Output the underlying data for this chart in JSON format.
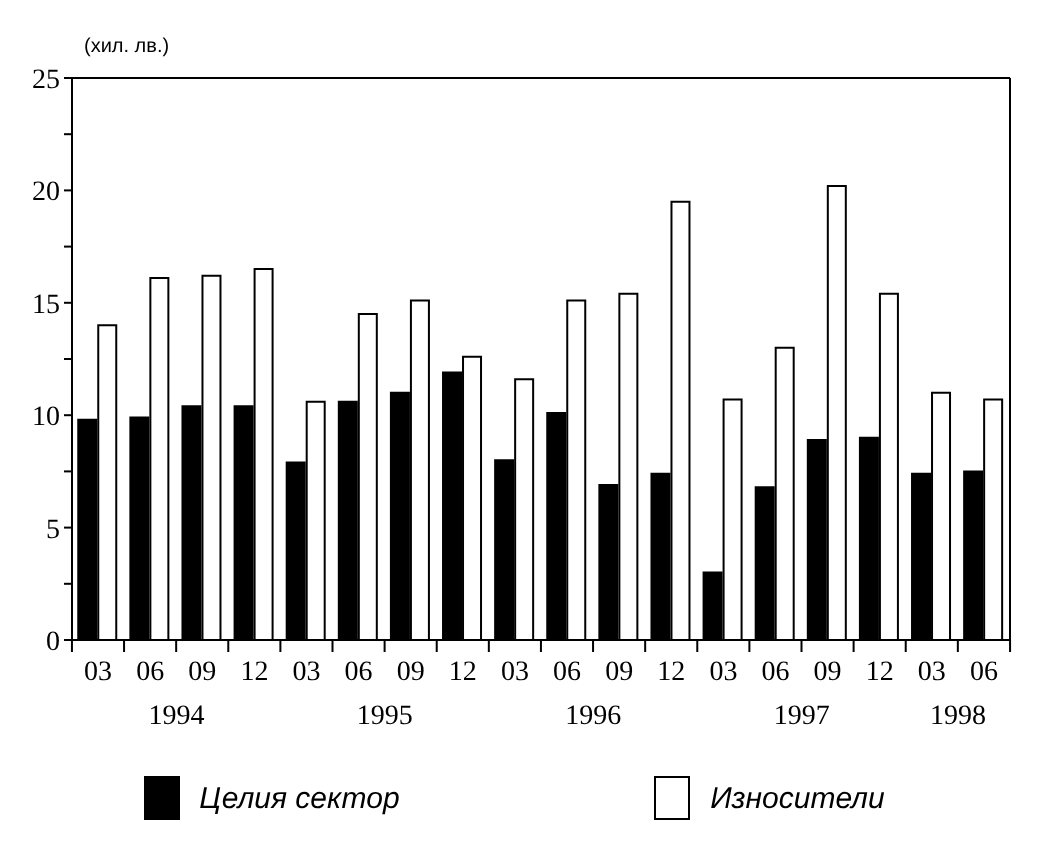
{
  "chart_data": {
    "type": "bar",
    "ylabel": "(хил. лв.)",
    "categories": [
      "03",
      "06",
      "09",
      "12",
      "03",
      "06",
      "09",
      "12",
      "03",
      "06",
      "09",
      "12",
      "03",
      "06",
      "09",
      "12",
      "03",
      "06"
    ],
    "series": [
      {
        "name": "Целия сектор",
        "color": "#000000",
        "values": [
          9.8,
          9.9,
          10.4,
          10.4,
          7.9,
          10.6,
          11.0,
          11.9,
          8.0,
          10.1,
          6.9,
          7.4,
          3.0,
          6.8,
          8.9,
          9.0,
          7.4,
          7.5
        ]
      },
      {
        "name": "Износители",
        "color": "#ffffff",
        "values": [
          14.0,
          16.1,
          16.2,
          16.5,
          10.6,
          14.5,
          15.1,
          12.6,
          11.6,
          15.1,
          15.4,
          19.5,
          10.7,
          13.0,
          20.2,
          15.4,
          11.0,
          10.7
        ]
      }
    ],
    "annotations": [
      "1994",
      "1995",
      "1996",
      "1997",
      "1998"
    ],
    "ylim": [
      0,
      25
    ],
    "yticks": [
      0,
      {
        "value": 2.5,
        "label": null
      },
      5,
      {
        "value": 7.5,
        "label": null
      },
      10,
      {
        "value": 12.5,
        "label": null
      },
      15,
      {
        "value": 17.5,
        "label": null
      },
      20,
      {
        "value": 22.5,
        "label": null
      },
      25
    ],
    "grid": false,
    "legend": "bottom"
  }
}
